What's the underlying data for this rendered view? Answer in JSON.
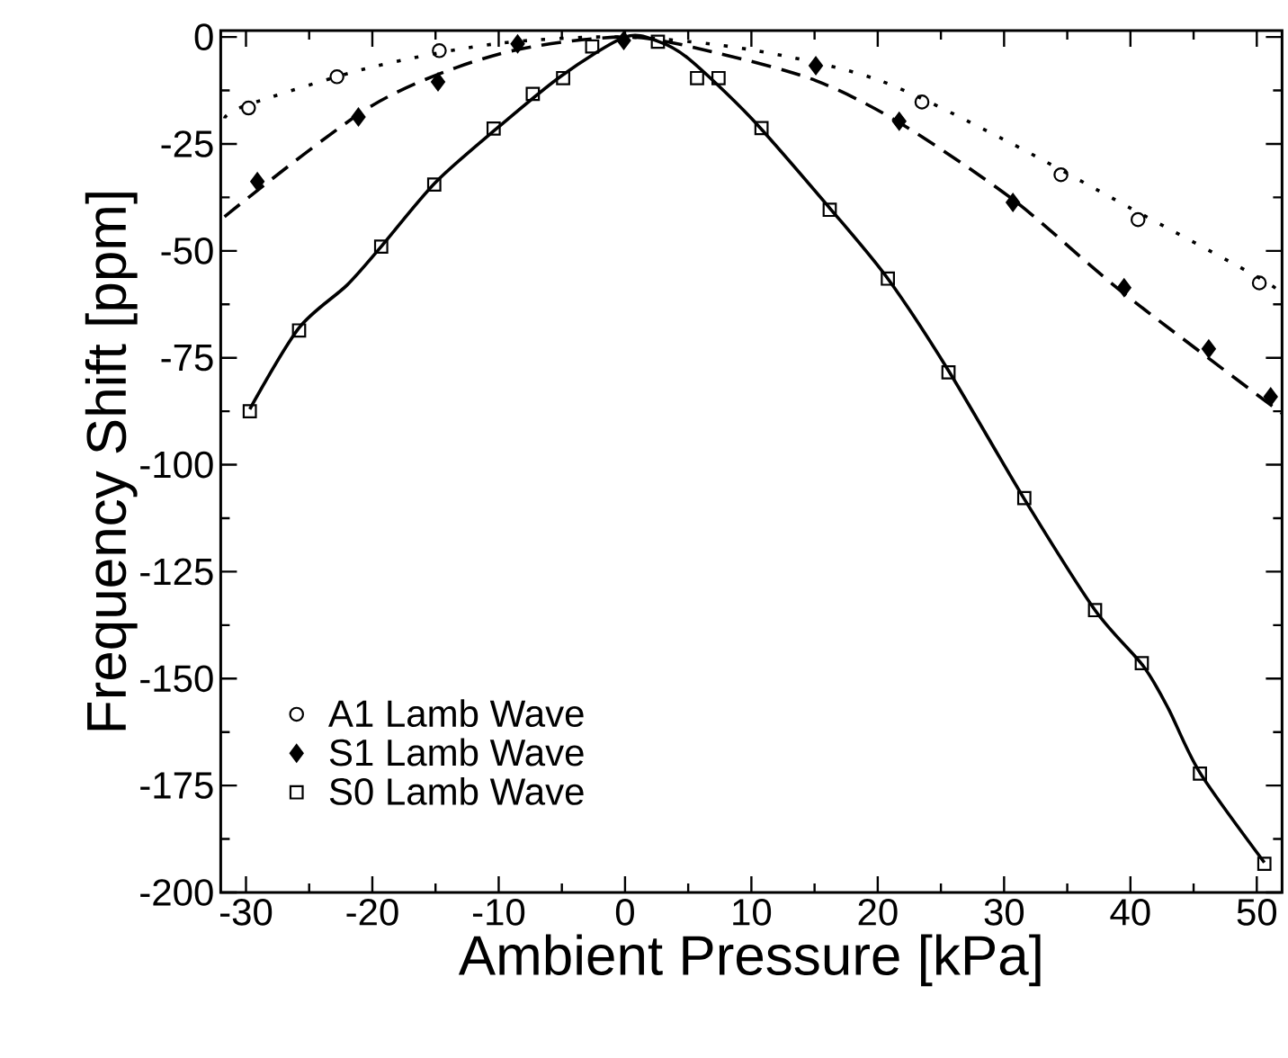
{
  "chart_data": {
    "type": "scatter",
    "xlabel": "Ambient Pressure [kPa]",
    "ylabel": "Frequency Shift [ppm]",
    "xlim": [
      -32,
      52
    ],
    "ylim": [
      -200,
      1.5
    ],
    "xticks": [
      -30,
      -20,
      -10,
      0,
      10,
      20,
      30,
      40,
      50
    ],
    "yticks": [
      0,
      -25,
      -50,
      -75,
      -100,
      -125,
      -150,
      -175,
      -200
    ],
    "legend": "bottom left",
    "grid": false,
    "series": [
      {
        "name": "A1 Lamb Wave",
        "marker": "circle",
        "color": "#000000",
        "x": [
          -29.8,
          -22.8,
          -14.7,
          23.5,
          34.5,
          40.6,
          50.2
        ],
        "values": [
          -16.6,
          -9.3,
          -3.2,
          -15.2,
          -32.2,
          -42.7,
          -57.5
        ]
      },
      {
        "name": "S1 Lamb Wave",
        "marker": "diamond",
        "color": "#000000",
        "x": [
          -29.1,
          -21.1,
          -14.8,
          -8.5,
          -0.1,
          15.1,
          21.7,
          30.7,
          39.5,
          46.2,
          51.1
        ],
        "values": [
          -33.8,
          -18.7,
          -10.5,
          -1.6,
          -0.8,
          -6.7,
          -19.7,
          -38.7,
          -58.6,
          -72.9,
          -84.1
        ]
      },
      {
        "name": "S0 Lamb Wave",
        "marker": "square",
        "color": "#000000",
        "x": [
          -29.7,
          -25.8,
          -19.3,
          -15.1,
          -10.4,
          -7.3,
          -4.9,
          -2.6,
          2.6,
          5.7,
          7.4,
          10.8,
          16.2,
          20.8,
          25.6,
          31.6,
          37.2,
          40.9,
          45.5,
          50.6
        ],
        "values": [
          -87.5,
          -68.6,
          -49.0,
          -34.5,
          -21.4,
          -13.3,
          -9.6,
          -2.2,
          -1.1,
          -9.6,
          -9.6,
          -21.3,
          -40.4,
          -56.5,
          -78.4,
          -107.8,
          -134.0,
          -146.4,
          -172.2,
          -193.3
        ]
      },
      {
        "type": "line",
        "marker": "none",
        "line_style": "dotted",
        "color": "#000000",
        "x": [
          -31.7,
          -30,
          -20,
          -10,
          0,
          10,
          20,
          30,
          40,
          50,
          52
        ],
        "values": [
          -19,
          -16,
          -7,
          -1.5,
          0,
          -3,
          -10,
          -24,
          -40,
          -56,
          -60
        ]
      },
      {
        "type": "line",
        "marker": "none",
        "line_style": "dashed",
        "color": "#000000",
        "x": [
          -31.7,
          -20,
          -10,
          0,
          7.5,
          15.1,
          21.7,
          30.7,
          39.5,
          52
        ],
        "values": [
          -42,
          -16,
          -4,
          0,
          -3.9,
          -10.2,
          -20,
          -38,
          -60,
          -88
        ]
      },
      {
        "type": "line",
        "marker": "none",
        "line_style": "solid",
        "color": "#000000",
        "x": [
          -29.7,
          -25.8,
          -22,
          -19.3,
          -15,
          -10,
          -5,
          0,
          2.6,
          5,
          10,
          16.2,
          20.8,
          25.6,
          31.6,
          37.2,
          41,
          43,
          45.5,
          50.6
        ],
        "values": [
          -87,
          -68,
          -58,
          -49,
          -34,
          -21,
          -9,
          0,
          -1,
          -5,
          -19,
          -40,
          -56.5,
          -78,
          -108,
          -134,
          -147,
          -157,
          -172,
          -193
        ]
      }
    ]
  }
}
